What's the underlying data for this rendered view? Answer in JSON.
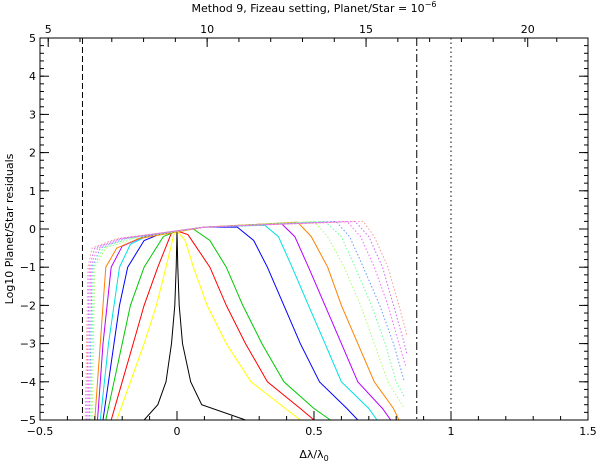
{
  "chart_data": {
    "type": "line",
    "title": "Method 9, Fizeau setting, Planet/Star = 10",
    "title_superscript": "−6",
    "xlabel": "Δλ/λ",
    "xlabel_subscript": "0",
    "ylabel": "Log10 Planet/Star residuals",
    "xlim": [
      -0.5,
      1.5
    ],
    "ylim": [
      -5,
      5
    ],
    "x_ticks": [
      -0.5,
      0,
      0.5,
      1,
      1.5
    ],
    "x_tick_labels": [
      "−0.5",
      "0",
      "0.5",
      "1",
      "1.5"
    ],
    "y_ticks": [
      -5,
      -4,
      -3,
      -2,
      -1,
      0,
      1,
      2,
      3,
      4,
      5
    ],
    "y_tick_labels": [
      "−5",
      "−4",
      "−3",
      "−2",
      "−1",
      "0",
      "1",
      "2",
      "3",
      "4",
      "5"
    ],
    "top_axis_ticks": [
      5,
      10,
      15,
      20
    ],
    "top_axis_tick_labels": [
      "5",
      "10",
      "15",
      "20"
    ],
    "top_axis_positions": [
      -0.47,
      0.11,
      0.69,
      1.28
    ],
    "vertical_lines": [
      {
        "x": -0.345,
        "style": "dashed",
        "color": "#000000"
      },
      {
        "x": 0.875,
        "style": "dashdot",
        "color": "#000000"
      },
      {
        "x": 1.0,
        "style": "dotted",
        "color": "#000000"
      }
    ],
    "series": [
      {
        "color": "#000000",
        "style": "solid",
        "points": [
          [
            -0.12,
            -5
          ],
          [
            -0.07,
            -4.6
          ],
          [
            -0.04,
            -4
          ],
          [
            -0.02,
            -3
          ],
          [
            -0.008,
            -2
          ],
          [
            -0.003,
            -1
          ],
          [
            0,
            -0.05
          ],
          [
            0.003,
            -1
          ],
          [
            0.008,
            -2
          ],
          [
            0.02,
            -3
          ],
          [
            0.05,
            -4
          ],
          [
            0.09,
            -4.6
          ],
          [
            0.25,
            -5
          ]
        ]
      },
      {
        "color": "#ffff00",
        "style": "solid",
        "points": [
          [
            -0.22,
            -5
          ],
          [
            -0.17,
            -4
          ],
          [
            -0.12,
            -3
          ],
          [
            -0.075,
            -2
          ],
          [
            -0.04,
            -1
          ],
          [
            -0.01,
            -0.1
          ],
          [
            0,
            -0.05
          ],
          [
            0.03,
            -0.3
          ],
          [
            0.06,
            -1
          ],
          [
            0.11,
            -2
          ],
          [
            0.18,
            -3
          ],
          [
            0.27,
            -4
          ],
          [
            0.45,
            -5
          ]
        ]
      },
      {
        "color": "#ff0000",
        "style": "solid",
        "points": [
          [
            -0.24,
            -5
          ],
          [
            -0.2,
            -4
          ],
          [
            -0.16,
            -3
          ],
          [
            -0.12,
            -2
          ],
          [
            -0.07,
            -1
          ],
          [
            -0.02,
            -0.1
          ],
          [
            0,
            -0.05
          ],
          [
            0.04,
            -0.15
          ],
          [
            0.12,
            -1
          ],
          [
            0.18,
            -2
          ],
          [
            0.25,
            -3
          ],
          [
            0.33,
            -4
          ],
          [
            0.45,
            -4.7
          ],
          [
            0.5,
            -5
          ]
        ]
      },
      {
        "color": "#00c800",
        "style": "solid",
        "points": [
          [
            -0.26,
            -5
          ],
          [
            -0.23,
            -4
          ],
          [
            -0.2,
            -3
          ],
          [
            -0.17,
            -2
          ],
          [
            -0.12,
            -1
          ],
          [
            -0.05,
            -0.2
          ],
          [
            0,
            -0.05
          ],
          [
            0.06,
            0
          ],
          [
            0.12,
            -0.3
          ],
          [
            0.18,
            -1
          ],
          [
            0.24,
            -2
          ],
          [
            0.31,
            -3
          ],
          [
            0.39,
            -4
          ],
          [
            0.5,
            -4.7
          ],
          [
            0.56,
            -5
          ]
        ]
      },
      {
        "color": "#0000ff",
        "style": "solid",
        "points": [
          [
            -0.27,
            -5
          ],
          [
            -0.25,
            -4
          ],
          [
            -0.23,
            -3
          ],
          [
            -0.21,
            -2
          ],
          [
            -0.18,
            -1
          ],
          [
            -0.12,
            -0.3
          ],
          [
            -0.05,
            -0.1
          ],
          [
            0.1,
            0.05
          ],
          [
            0.22,
            0.05
          ],
          [
            0.28,
            -0.3
          ],
          [
            0.33,
            -1
          ],
          [
            0.39,
            -2
          ],
          [
            0.45,
            -3
          ],
          [
            0.52,
            -4
          ],
          [
            0.62,
            -4.7
          ],
          [
            0.66,
            -5
          ]
        ]
      },
      {
        "color": "#00e0e0",
        "style": "solid",
        "points": [
          [
            -0.28,
            -5
          ],
          [
            -0.265,
            -4
          ],
          [
            -0.25,
            -3
          ],
          [
            -0.23,
            -2
          ],
          [
            -0.21,
            -1
          ],
          [
            -0.17,
            -0.4
          ],
          [
            -0.1,
            -0.15
          ],
          [
            0.1,
            0.05
          ],
          [
            0.32,
            0.1
          ],
          [
            0.37,
            -0.2
          ],
          [
            0.42,
            -1
          ],
          [
            0.48,
            -2
          ],
          [
            0.54,
            -3
          ],
          [
            0.6,
            -4
          ],
          [
            0.7,
            -4.7
          ],
          [
            0.73,
            -5
          ]
        ]
      },
      {
        "color": "#b400ff",
        "style": "solid",
        "points": [
          [
            -0.29,
            -5
          ],
          [
            -0.28,
            -4
          ],
          [
            -0.27,
            -3
          ],
          [
            -0.255,
            -2
          ],
          [
            -0.24,
            -1
          ],
          [
            -0.2,
            -0.45
          ],
          [
            -0.12,
            -0.2
          ],
          [
            0.1,
            0.05
          ],
          [
            0.38,
            0.15
          ],
          [
            0.43,
            -0.2
          ],
          [
            0.48,
            -1
          ],
          [
            0.54,
            -2
          ],
          [
            0.6,
            -3
          ],
          [
            0.66,
            -4
          ],
          [
            0.75,
            -4.7
          ],
          [
            0.78,
            -5
          ]
        ]
      },
      {
        "color": "#ff8000",
        "style": "solid",
        "points": [
          [
            -0.3,
            -5
          ],
          [
            -0.29,
            -4
          ],
          [
            -0.28,
            -3
          ],
          [
            -0.27,
            -2
          ],
          [
            -0.26,
            -1
          ],
          [
            -0.22,
            -0.5
          ],
          [
            -0.14,
            -0.25
          ],
          [
            0.1,
            0.05
          ],
          [
            0.44,
            0.18
          ],
          [
            0.49,
            -0.2
          ],
          [
            0.55,
            -1
          ],
          [
            0.6,
            -2
          ],
          [
            0.66,
            -3
          ],
          [
            0.72,
            -4
          ],
          [
            0.79,
            -4.7
          ],
          [
            0.81,
            -5
          ]
        ]
      },
      {
        "color": "#aaff66",
        "style": "dotted",
        "points": [
          [
            -0.31,
            -5
          ],
          [
            -0.305,
            -3
          ],
          [
            -0.3,
            -1
          ],
          [
            -0.26,
            -0.5
          ],
          [
            -0.16,
            -0.25
          ],
          [
            0.1,
            0.05
          ],
          [
            0.5,
            0.2
          ],
          [
            0.55,
            -0.2
          ],
          [
            0.61,
            -1
          ],
          [
            0.67,
            -2
          ],
          [
            0.72,
            -3
          ],
          [
            0.77,
            -4
          ],
          [
            0.83,
            -4.7
          ]
        ]
      },
      {
        "color": "#66ff99",
        "style": "dotted",
        "points": [
          [
            -0.315,
            -5
          ],
          [
            -0.31,
            -3
          ],
          [
            -0.305,
            -1
          ],
          [
            -0.27,
            -0.5
          ],
          [
            -0.18,
            -0.25
          ],
          [
            0.1,
            0.05
          ],
          [
            0.54,
            0.2
          ],
          [
            0.6,
            -0.2
          ],
          [
            0.65,
            -1
          ],
          [
            0.71,
            -2
          ],
          [
            0.76,
            -3
          ],
          [
            0.8,
            -4
          ],
          [
            0.83,
            -4.4
          ]
        ]
      },
      {
        "color": "#6699ff",
        "style": "dotted",
        "points": [
          [
            -0.32,
            -5
          ],
          [
            -0.315,
            -3
          ],
          [
            -0.31,
            -1
          ],
          [
            -0.28,
            -0.5
          ],
          [
            -0.19,
            -0.25
          ],
          [
            0.1,
            0.05
          ],
          [
            0.58,
            0.2
          ],
          [
            0.63,
            -0.2
          ],
          [
            0.68,
            -1
          ],
          [
            0.74,
            -2
          ],
          [
            0.79,
            -3
          ],
          [
            0.83,
            -4
          ]
        ]
      },
      {
        "color": "#ff66ff",
        "style": "dotted",
        "points": [
          [
            -0.325,
            -5
          ],
          [
            -0.32,
            -3
          ],
          [
            -0.315,
            -1
          ],
          [
            -0.29,
            -0.5
          ],
          [
            -0.2,
            -0.25
          ],
          [
            0.1,
            0.05
          ],
          [
            0.62,
            0.2
          ],
          [
            0.67,
            -0.2
          ],
          [
            0.72,
            -1
          ],
          [
            0.77,
            -2
          ],
          [
            0.81,
            -3
          ],
          [
            0.835,
            -3.6
          ]
        ]
      },
      {
        "color": "#cc66ff",
        "style": "dotted",
        "points": [
          [
            -0.33,
            -5
          ],
          [
            -0.325,
            -3
          ],
          [
            -0.32,
            -1
          ],
          [
            -0.3,
            -0.5
          ],
          [
            -0.21,
            -0.25
          ],
          [
            0.1,
            0.05
          ],
          [
            0.65,
            0.2
          ],
          [
            0.7,
            -0.2
          ],
          [
            0.75,
            -1
          ],
          [
            0.79,
            -2
          ],
          [
            0.83,
            -3
          ],
          [
            0.84,
            -3.3
          ]
        ]
      },
      {
        "color": "#ff9999",
        "style": "dotted",
        "points": [
          [
            -0.335,
            -5
          ],
          [
            -0.33,
            -3
          ],
          [
            -0.325,
            -1
          ],
          [
            -0.31,
            -0.5
          ],
          [
            -0.22,
            -0.25
          ],
          [
            0.1,
            0.05
          ],
          [
            0.68,
            0.2
          ],
          [
            0.72,
            -0.2
          ],
          [
            0.77,
            -1
          ],
          [
            0.81,
            -2
          ],
          [
            0.84,
            -2.8
          ]
        ]
      }
    ]
  }
}
